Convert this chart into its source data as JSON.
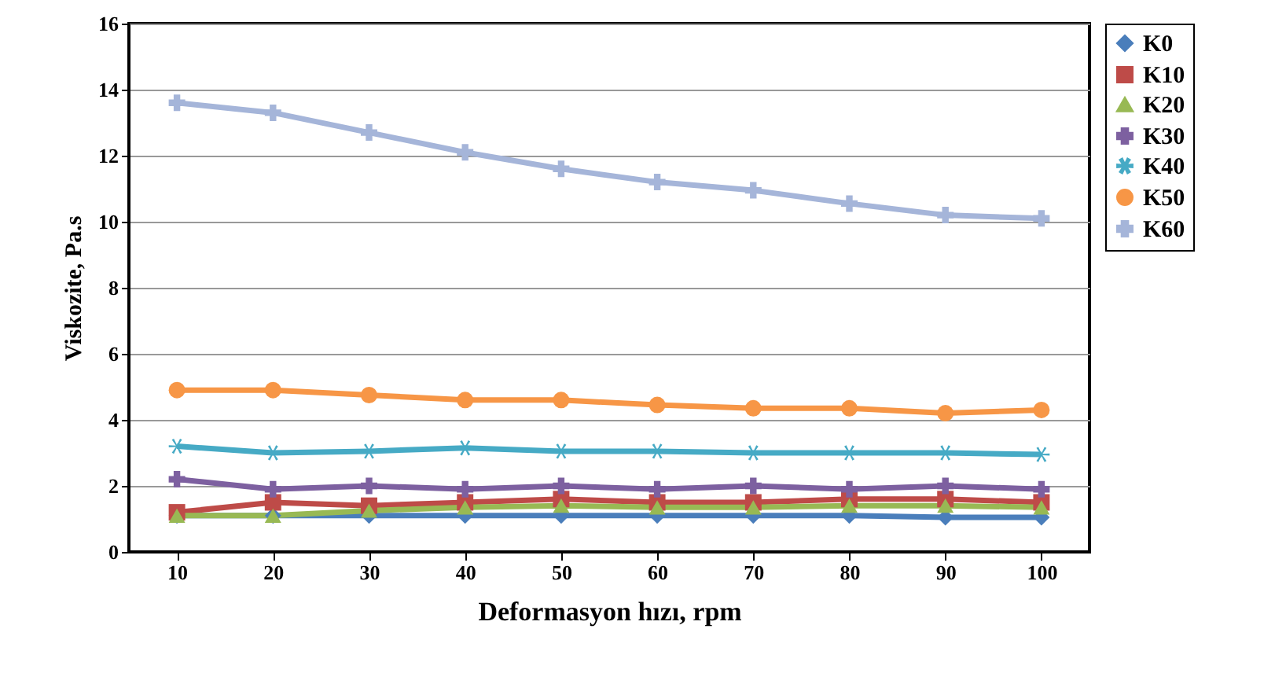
{
  "chart_data": {
    "type": "line",
    "xlabel": "Deformasyon hızı, rpm",
    "ylabel": "Viskozite, Pa.s",
    "categories": [
      "10",
      "20",
      "30",
      "40",
      "50",
      "60",
      "70",
      "80",
      "90",
      "100"
    ],
    "ylim": [
      0,
      16
    ],
    "yticks": [
      0,
      2,
      4,
      6,
      8,
      10,
      12,
      14,
      16
    ],
    "grid": "y",
    "legend": "top right",
    "line_style": "solid",
    "series": [
      {
        "name": "K0",
        "color": "#4a7ebb",
        "marker": "diamond",
        "values": [
          1.1,
          1.1,
          1.1,
          1.1,
          1.1,
          1.1,
          1.1,
          1.1,
          1.05,
          1.05
        ]
      },
      {
        "name": "K10",
        "color": "#be4b48",
        "marker": "square",
        "values": [
          1.2,
          1.5,
          1.4,
          1.5,
          1.6,
          1.5,
          1.5,
          1.6,
          1.6,
          1.5
        ]
      },
      {
        "name": "K20",
        "color": "#98b954",
        "marker": "triangle",
        "values": [
          1.1,
          1.1,
          1.25,
          1.35,
          1.4,
          1.35,
          1.35,
          1.4,
          1.4,
          1.35
        ]
      },
      {
        "name": "K30",
        "color": "#7d60a0",
        "marker": "cross",
        "values": [
          2.2,
          1.9,
          2.0,
          1.9,
          2.0,
          1.9,
          2.0,
          1.9,
          2.0,
          1.9
        ]
      },
      {
        "name": "K40",
        "color": "#46aac5",
        "marker": "star",
        "values": [
          3.2,
          3.0,
          3.05,
          3.15,
          3.05,
          3.05,
          3.0,
          3.0,
          3.0,
          2.95
        ]
      },
      {
        "name": "K50",
        "color": "#f79646",
        "marker": "circle",
        "values": [
          4.9,
          4.9,
          4.75,
          4.6,
          4.6,
          4.45,
          4.35,
          4.35,
          4.2,
          4.3
        ]
      },
      {
        "name": "K60",
        "color": "#a5b5d9",
        "marker": "cross",
        "values": [
          13.6,
          13.3,
          12.7,
          12.1,
          11.6,
          11.2,
          10.95,
          10.55,
          10.2,
          10.1
        ]
      }
    ]
  }
}
